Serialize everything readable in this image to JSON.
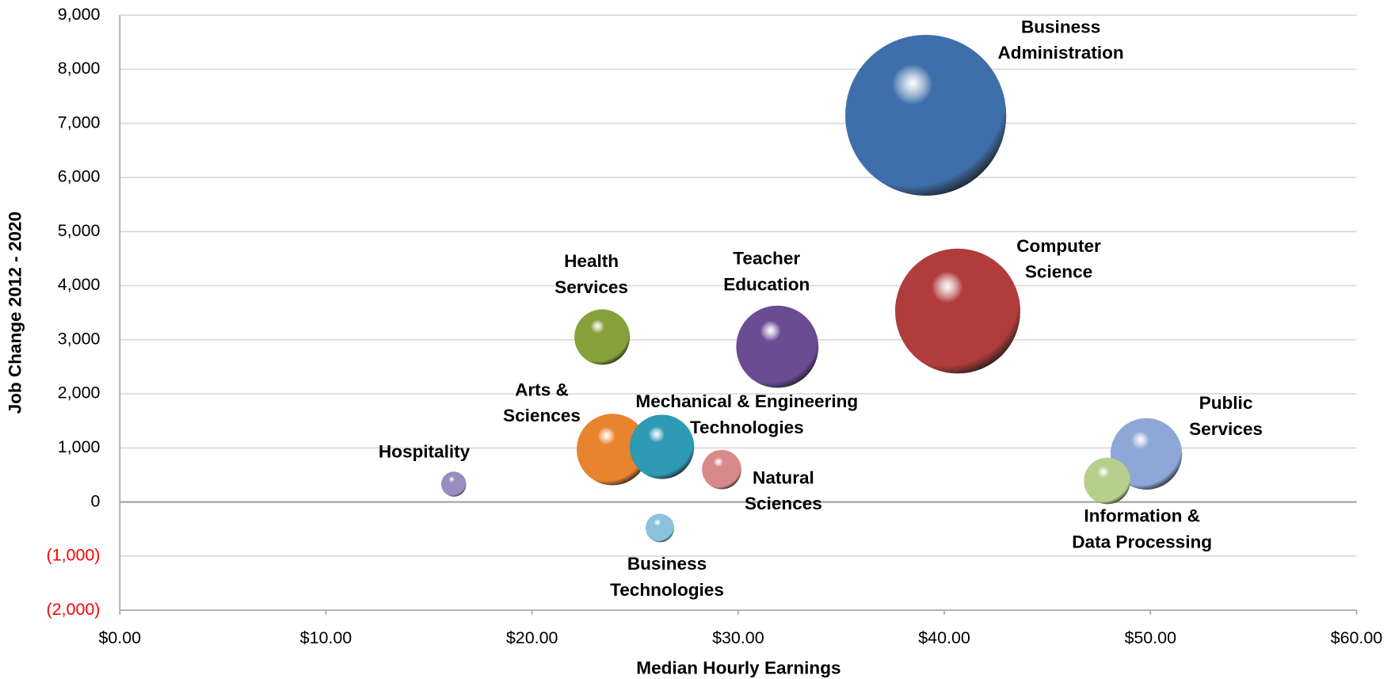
{
  "chart_data": {
    "type": "bubble",
    "x_label": "Median Hourly Earnings",
    "y_label": "Job Change 2012 - 2020",
    "categories": [
      [
        "Business",
        "Administration"
      ],
      [
        "Computer",
        "Science"
      ],
      [
        "Teacher",
        "Education"
      ],
      [
        "Health",
        "Services"
      ],
      [
        "Arts &",
        "Sciences"
      ],
      [
        "Mechanical & Engineering",
        "Technologies"
      ],
      [
        "Natural",
        "Sciences"
      ],
      [
        "Business",
        "Technologies"
      ],
      [
        "Hospitality"
      ],
      [
        "Public",
        "Services"
      ],
      [
        "Information &",
        "Data Processing"
      ]
    ],
    "x": [
      39.1,
      40.65,
      31.9,
      23.4,
      23.9,
      26.3,
      29.2,
      26.2,
      16.2,
      49.8,
      47.9
    ],
    "values": [
      7150,
      3530,
      2870,
      3050,
      970,
      1020,
      600,
      -480,
      330,
      890,
      390
    ],
    "sizes": [
      8100,
      4900,
      2116,
      961,
      1600,
      1296,
      484,
      256,
      196,
      1600,
      676
    ],
    "colors": [
      "#3f6faa",
      "#b03c3c",
      "#6a4c93",
      "#86a03a",
      "#e8832e",
      "#2f9ab3",
      "#d88a8a",
      "#8cc3dc",
      "#9a8cc0",
      "#8ea7d6",
      "#b5d08c"
    ],
    "xlim": [
      0,
      60
    ],
    "xticks": [
      {
        "value": 0,
        "label": "$0.00"
      },
      {
        "value": 10,
        "label": "$10.00"
      },
      {
        "value": 20,
        "label": "$20.00"
      },
      {
        "value": 30,
        "label": "$30.00"
      },
      {
        "value": 40,
        "label": "$40.00"
      },
      {
        "value": 50,
        "label": "$50.00"
      },
      {
        "value": 60,
        "label": "$60.00"
      }
    ],
    "ylim": [
      -2000,
      9000
    ],
    "yticks": [
      {
        "value": -2000,
        "label": "(2,000)"
      },
      {
        "value": -1000,
        "label": "(1,000)"
      },
      0,
      {
        "value": 1000,
        "label": "1,000"
      },
      {
        "value": 2000,
        "label": "2,000"
      },
      {
        "value": 3000,
        "label": "3,000"
      },
      {
        "value": 4000,
        "label": "4,000"
      },
      {
        "value": 5000,
        "label": "5,000"
      },
      {
        "value": 6000,
        "label": "6,000"
      },
      {
        "value": 7000,
        "label": "7,000"
      },
      {
        "value": 8000,
        "label": "8,000"
      },
      {
        "value": 9000,
        "label": "9,000"
      }
    ],
    "negative_tick_color": "#ff0000",
    "grid": true
  }
}
